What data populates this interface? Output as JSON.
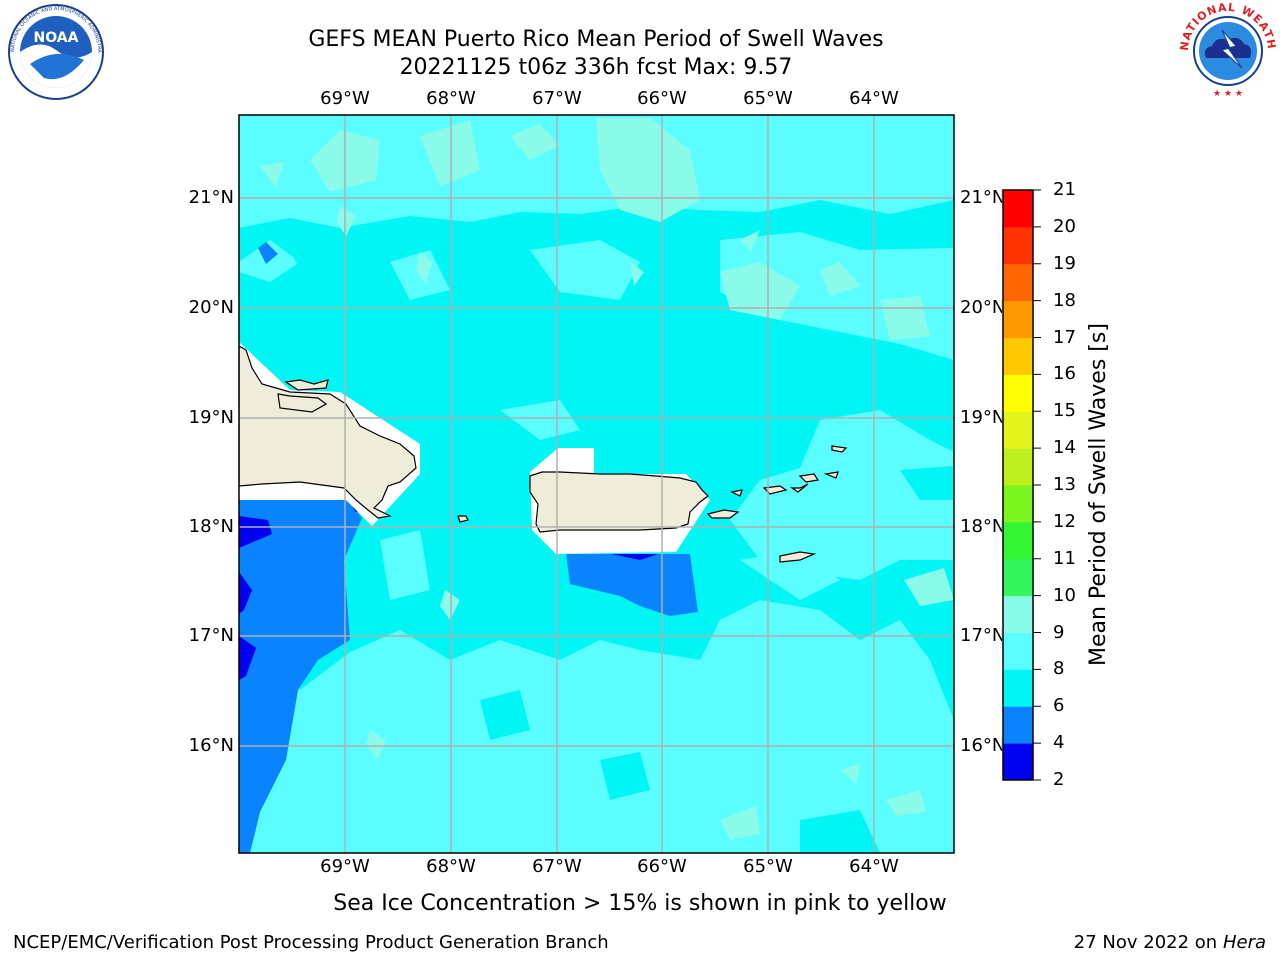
{
  "title": {
    "line1": "GEFS MEAN Puerto Rico Mean Period of Swell Waves",
    "line2": "20221125 t06z 336h fcst   Max: 9.57"
  },
  "logos": {
    "left": {
      "icon": "noaa-logo-icon",
      "text": "NOAA",
      "ring_text": "NATIONAL OCEANIC AND ATMOSPHERIC ADMINISTRATION · U.S. DEPARTMENT OF COMMERCE"
    },
    "right": {
      "icon": "nws-logo-icon",
      "ring_text": "NATIONAL WEATHER SERVICE"
    }
  },
  "map": {
    "lon_ticks": [
      "69°W",
      "68°W",
      "67°W",
      "66°W",
      "65°W",
      "64°W"
    ],
    "lat_ticks": [
      "21°N",
      "20°N",
      "19°N",
      "18°N",
      "17°N",
      "16°N"
    ],
    "lon_values": [
      -69,
      -68,
      -67,
      -66,
      -65,
      -64
    ],
    "lat_values": [
      21,
      20,
      19,
      18,
      17,
      16
    ],
    "extent": {
      "lon_min": -70.0,
      "lon_max": -63.25,
      "lat_min": 15.0,
      "lat_max": 21.75
    },
    "colors": {
      "ocean_6_8": "#00f5f5",
      "ocean_8_9": "#5bfefe",
      "ocean_9_10": "#8afbe8",
      "ocean_4_6": "#0a84fe",
      "ocean_2_4": "#0000f0",
      "land": "#efedda",
      "grid": "#b0b0b0"
    }
  },
  "colorbar": {
    "label": "Mean Period of Swell Waves [s]",
    "ticks": [
      "21",
      "20",
      "19",
      "18",
      "17",
      "16",
      "15",
      "14",
      "13",
      "12",
      "11",
      "10",
      "9",
      "8",
      "6",
      "4",
      "2"
    ],
    "colors": [
      "#0000f0",
      "#0a84fe",
      "#00f5f5",
      "#5bfefe",
      "#8afbe8",
      "#33f55c",
      "#33f533",
      "#7df51e",
      "#bdf01e",
      "#e4f51e",
      "#ffff00",
      "#ffc800",
      "#ff9900",
      "#ff6600",
      "#ff3300",
      "#ff0000"
    ]
  },
  "note": "Sea Ice Concentration > 15% is shown in pink to yellow",
  "footer": {
    "left": "NCEP/EMC/Verification Post Processing Product Generation Branch",
    "right_prefix": "27 Nov 2022 on",
    "right_machine": "Hera"
  }
}
